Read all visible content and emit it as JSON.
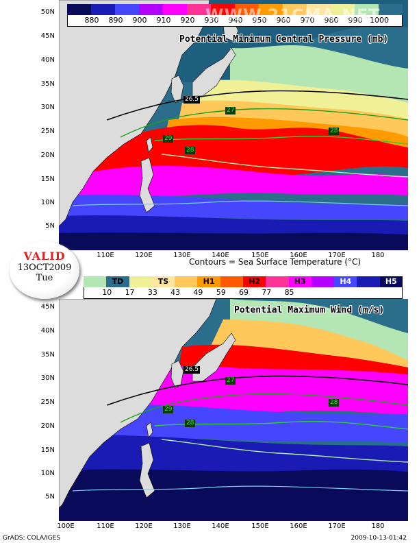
{
  "watermark": "WWW.21CMA.NET",
  "top_panel": {
    "title": "Potential Minimum Central Pressure (mb)",
    "colorbar": {
      "labels": [
        "880",
        "890",
        "900",
        "910",
        "920",
        "930",
        "940",
        "950",
        "960",
        "970",
        "980",
        "990",
        "1000"
      ],
      "colors": [
        "#0a0a5a",
        "#1a1ab4",
        "#4646ff",
        "#b400ff",
        "#ff00ff",
        "#ff3296",
        "#ff0000",
        "#ff5a00",
        "#ff9b00",
        "#ffc85a",
        "#ffe6a0",
        "#f0f096",
        "#b4e6b4",
        "#2a6e8c"
      ]
    },
    "lat_labels": [
      "50N",
      "45N",
      "40N",
      "35N",
      "30N",
      "25N",
      "20N",
      "15N",
      "10N",
      "5N"
    ],
    "lon_labels": [
      "110E",
      "120E",
      "130E",
      "140E",
      "150E",
      "160E",
      "170E",
      "180"
    ],
    "sst_labels": [
      "26.5",
      "27",
      "28",
      "29",
      "28"
    ]
  },
  "contour_note": "Contours = Sea Surface Temperature (°C)",
  "valid": {
    "title": "VALID",
    "date": "13OCT2009",
    "day": "Tue"
  },
  "bottom_panel": {
    "title": "Potential Maximum Wind (m/s)",
    "categories": [
      "TD",
      "TS",
      "H1",
      "H2",
      "H3",
      "H4",
      "H5"
    ],
    "colorbar": {
      "labels": [
        "10",
        "17",
        "33",
        "43",
        "49",
        "59",
        "69",
        "77",
        "85"
      ],
      "colors": [
        "#b4e6b4",
        "#2a6e8c",
        "#f0f096",
        "#ffe6a0",
        "#ffc85a",
        "#ff9b00",
        "#ff5a00",
        "#ff0000",
        "#ff3296",
        "#ff00ff",
        "#b400ff",
        "#4646ff",
        "#1a1ab4",
        "#0a0a5a"
      ]
    },
    "lat_labels": [
      "45N",
      "40N",
      "35N",
      "30N",
      "25N",
      "20N",
      "15N",
      "10N",
      "5N"
    ],
    "lon_labels": [
      "100E",
      "110E",
      "120E",
      "130E",
      "140E",
      "150E",
      "160E",
      "170E",
      "180"
    ],
    "sst_labels": [
      "26.5",
      "27",
      "28",
      "29",
      "28"
    ]
  },
  "footer": {
    "left": "GrADS: COLA/IGES",
    "right": "2009-10-13-01:42"
  }
}
